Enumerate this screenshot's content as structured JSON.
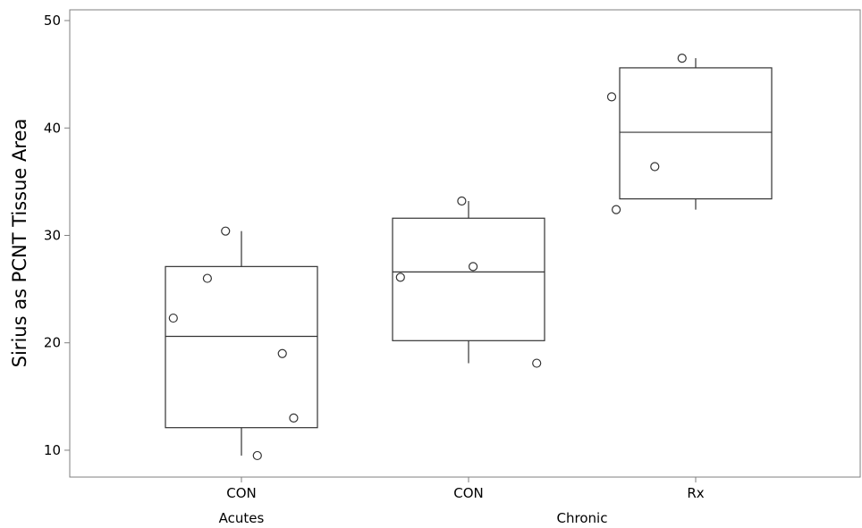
{
  "chart_data": {
    "type": "box",
    "ylabel": "Sirius as PCNT Tissue Area",
    "xlabel": "",
    "ylim": [
      7.5,
      51
    ],
    "yticks": [
      10,
      20,
      30,
      40,
      50
    ],
    "grid": false,
    "legend": "none",
    "colors": {
      "axis": "#7f7f7f",
      "box": "#333333",
      "point": "#333333"
    },
    "categories": [
      "CON",
      "CON",
      "Rx"
    ],
    "groups": [
      {
        "label": "Acutes",
        "categories": [
          0
        ]
      },
      {
        "label": "Chronic",
        "categories": [
          1,
          2
        ]
      }
    ],
    "boxes": [
      {
        "category": "CON",
        "q1": 12.1,
        "median": 20.6,
        "q3": 27.1,
        "whisker_low": 9.5,
        "whisker_high": 30.4,
        "points": [
          {
            "x": -0.07,
            "y": 30.4
          },
          {
            "x": -0.15,
            "y": 26.0
          },
          {
            "x": -0.3,
            "y": 22.3
          },
          {
            "x": 0.18,
            "y": 19.0
          },
          {
            "x": 0.23,
            "y": 13.0
          },
          {
            "x": 0.07,
            "y": 9.5
          }
        ]
      },
      {
        "category": "CON",
        "q1": 20.2,
        "median": 26.6,
        "q3": 31.6,
        "whisker_low": 18.1,
        "whisker_high": 33.2,
        "points": [
          {
            "x": -0.03,
            "y": 33.2
          },
          {
            "x": 0.02,
            "y": 27.1
          },
          {
            "x": -0.3,
            "y": 26.1
          },
          {
            "x": 0.3,
            "y": 18.1
          }
        ]
      },
      {
        "category": "Rx",
        "q1": 33.4,
        "median": 39.6,
        "q3": 45.6,
        "whisker_low": 32.4,
        "whisker_high": 46.5,
        "points": [
          {
            "x": -0.37,
            "y": 42.9
          },
          {
            "x": -0.35,
            "y": 32.4
          },
          {
            "x": -0.18,
            "y": 36.4
          },
          {
            "x": -0.06,
            "y": 46.5
          }
        ]
      }
    ]
  }
}
